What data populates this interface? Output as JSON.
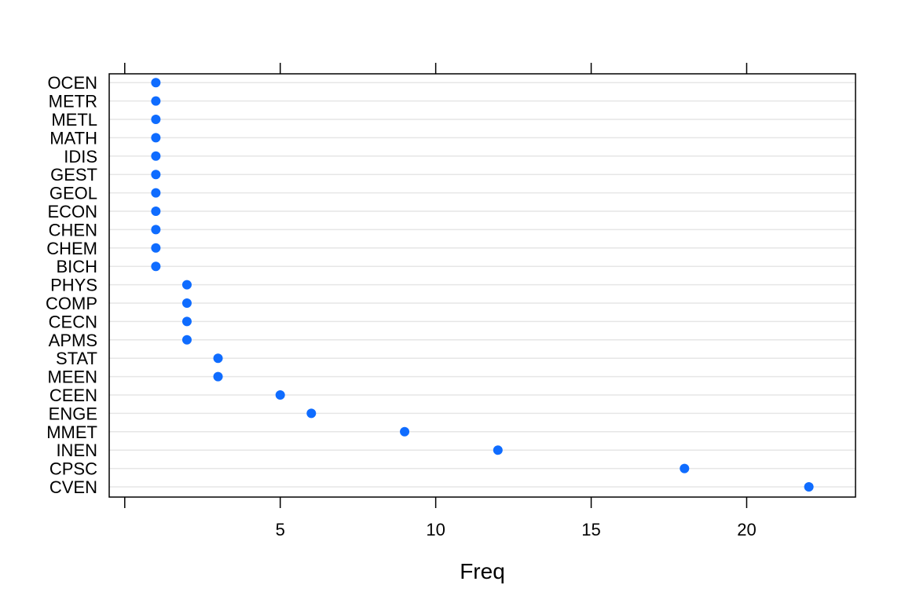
{
  "chart_data": {
    "type": "dot",
    "xlabel": "Freq",
    "ylabel": "",
    "title": "",
    "xlim": [
      -0.5,
      23.5
    ],
    "xticks": [
      0,
      5,
      10,
      15,
      20
    ],
    "xtick_labels": [
      "",
      "5",
      "10",
      "15",
      "20"
    ],
    "grid": true,
    "categories": [
      "CVEN",
      "CPSC",
      "INEN",
      "MMET",
      "ENGE",
      "CEEN",
      "MEEN",
      "STAT",
      "APMS",
      "CECN",
      "COMP",
      "PHYS",
      "BICH",
      "CHEM",
      "CHEN",
      "ECON",
      "GEOL",
      "GEST",
      "IDIS",
      "MATH",
      "METL",
      "METR",
      "OCEN"
    ],
    "values": [
      22,
      18,
      12,
      9,
      6,
      5,
      3,
      3,
      2,
      2,
      2,
      2,
      1,
      1,
      1,
      1,
      1,
      1,
      1,
      1,
      1,
      1,
      1
    ],
    "colors": {
      "point": "#0f6cff",
      "grid": "#e6e6e6",
      "axis": "#000000"
    }
  }
}
